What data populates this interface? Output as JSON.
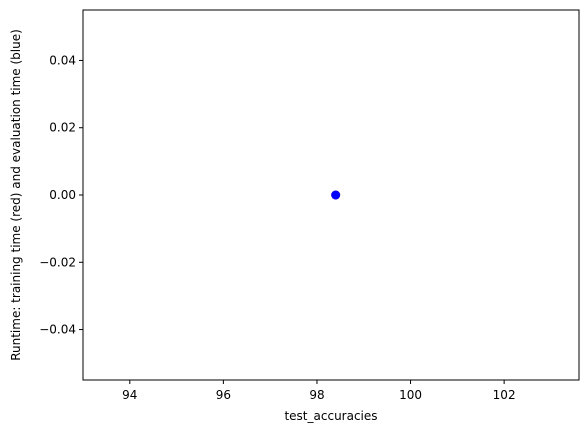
{
  "chart_data": {
    "type": "scatter",
    "title": "",
    "xlabel": "test_accuracies",
    "ylabel": "Runtime: training time (red) and evaluation time (blue)",
    "xlim": [
      93.0,
      103.6
    ],
    "ylim": [
      -0.055,
      0.055
    ],
    "xticks": [
      94,
      96,
      98,
      100,
      102
    ],
    "xtick_labels": [
      "94",
      "96",
      "98",
      "100",
      "102"
    ],
    "yticks": [
      0.04,
      0.02,
      0.0,
      -0.02,
      -0.04
    ],
    "ytick_labels": [
      "0.04",
      "0.02",
      "0.00",
      "−0.02",
      "−0.04"
    ],
    "grid": false,
    "series": [
      {
        "color": "#ff0000",
        "points": [
          {
            "x": 98.4,
            "y": 0.0
          }
        ]
      },
      {
        "color": "#0000ff",
        "points": [
          {
            "x": 98.4,
            "y": 0.0
          }
        ]
      }
    ]
  }
}
